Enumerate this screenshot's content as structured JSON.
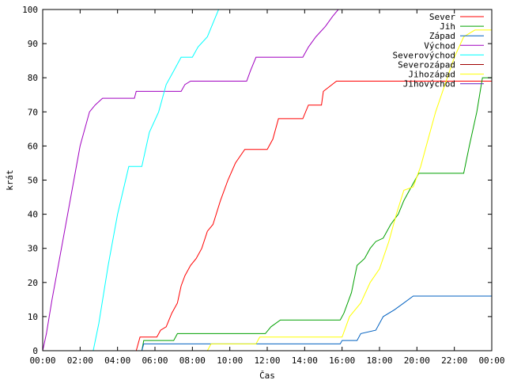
{
  "chart_data": {
    "type": "line",
    "xlabel": "Čas",
    "ylabel": "krát",
    "xlim": [
      0,
      24
    ],
    "ylim": [
      0,
      100
    ],
    "grid": false,
    "legend_position": "top-right",
    "x_ticks": [
      0,
      2,
      4,
      6,
      8,
      10,
      12,
      14,
      16,
      18,
      20,
      22,
      24
    ],
    "x_tick_labels": [
      "00:00",
      "02:00",
      "04:00",
      "06:00",
      "08:00",
      "10:00",
      "12:00",
      "14:00",
      "16:00",
      "18:00",
      "20:00",
      "22:00",
      "00:00"
    ],
    "y_ticks": [
      0,
      10,
      20,
      30,
      40,
      50,
      60,
      70,
      80,
      90,
      100
    ],
    "y_tick_labels": [
      "0",
      "10",
      "20",
      "30",
      "40",
      "50",
      "60",
      "70",
      "80",
      "90",
      "100"
    ],
    "series": [
      {
        "name": "Sever",
        "color": "#ff0000",
        "points": [
          [
            0,
            0
          ],
          [
            5,
            0
          ],
          [
            5.2,
            4
          ],
          [
            6.1,
            4
          ],
          [
            6.3,
            6
          ],
          [
            6.6,
            7
          ],
          [
            6.9,
            11
          ],
          [
            7.2,
            14
          ],
          [
            7.4,
            19
          ],
          [
            7.6,
            22
          ],
          [
            7.9,
            25
          ],
          [
            8.2,
            27
          ],
          [
            8.5,
            30
          ],
          [
            8.8,
            35
          ],
          [
            9.1,
            37
          ],
          [
            9.5,
            44
          ],
          [
            9.9,
            50
          ],
          [
            10.3,
            55
          ],
          [
            10.8,
            59
          ],
          [
            12.0,
            59
          ],
          [
            12.3,
            62
          ],
          [
            12.6,
            68
          ],
          [
            13.9,
            68
          ],
          [
            14.2,
            72
          ],
          [
            14.9,
            72
          ],
          [
            15.0,
            76
          ],
          [
            15.7,
            79
          ],
          [
            20.0,
            79
          ],
          [
            24,
            79
          ]
        ]
      },
      {
        "name": "Jih",
        "color": "#00a000",
        "points": [
          [
            0,
            0
          ],
          [
            5.3,
            0
          ],
          [
            5.4,
            3
          ],
          [
            7.0,
            3
          ],
          [
            7.2,
            5
          ],
          [
            11.9,
            5
          ],
          [
            12.2,
            7
          ],
          [
            12.7,
            9
          ],
          [
            15.9,
            9
          ],
          [
            16.1,
            11
          ],
          [
            16.5,
            17
          ],
          [
            16.8,
            25
          ],
          [
            17.2,
            27
          ],
          [
            17.5,
            30
          ],
          [
            17.8,
            32
          ],
          [
            18.2,
            33
          ],
          [
            18.6,
            37
          ],
          [
            19.0,
            40
          ],
          [
            19.3,
            44
          ],
          [
            19.7,
            48
          ],
          [
            20.1,
            52
          ],
          [
            22.5,
            52
          ],
          [
            22.8,
            60
          ],
          [
            23.2,
            70
          ],
          [
            23.5,
            80
          ],
          [
            24,
            80
          ]
        ]
      },
      {
        "name": "Západ",
        "color": "#0060c0",
        "points": [
          [
            0,
            0
          ],
          [
            5.3,
            0
          ],
          [
            5.4,
            2
          ],
          [
            15.9,
            2
          ],
          [
            16.0,
            3
          ],
          [
            16.8,
            3
          ],
          [
            17.0,
            5
          ],
          [
            17.8,
            6
          ],
          [
            18.2,
            10
          ],
          [
            18.8,
            12
          ],
          [
            19.3,
            14
          ],
          [
            19.8,
            16
          ],
          [
            24,
            16
          ]
        ]
      },
      {
        "name": "Východ",
        "color": "#a000c0",
        "points": [
          [
            0,
            0
          ],
          [
            0.2,
            5
          ],
          [
            0.5,
            15
          ],
          [
            1.0,
            30
          ],
          [
            1.5,
            45
          ],
          [
            2.0,
            60
          ],
          [
            2.5,
            70
          ],
          [
            2.8,
            72
          ],
          [
            3.2,
            74
          ],
          [
            4.9,
            74
          ],
          [
            5.0,
            76
          ],
          [
            7.4,
            76
          ],
          [
            7.6,
            78
          ],
          [
            7.9,
            79
          ],
          [
            10.9,
            79
          ],
          [
            11.1,
            82
          ],
          [
            11.4,
            86
          ],
          [
            13.9,
            86
          ],
          [
            14.2,
            89
          ],
          [
            14.6,
            92
          ],
          [
            15.1,
            95
          ],
          [
            15.5,
            98
          ],
          [
            15.8,
            100
          ]
        ]
      },
      {
        "name": "Severovýchod",
        "color": "#00ffff",
        "points": [
          [
            0,
            0
          ],
          [
            2.7,
            0
          ],
          [
            3.0,
            8
          ],
          [
            3.5,
            25
          ],
          [
            4.0,
            40
          ],
          [
            4.6,
            54
          ],
          [
            5.3,
            54
          ],
          [
            5.7,
            64
          ],
          [
            6.2,
            70
          ],
          [
            6.6,
            78
          ],
          [
            7.0,
            82
          ],
          [
            7.4,
            86
          ],
          [
            8.0,
            86
          ],
          [
            8.3,
            89
          ],
          [
            8.8,
            92
          ],
          [
            9.1,
            96
          ],
          [
            9.4,
            100
          ]
        ]
      },
      {
        "name": "Severozápad",
        "color": "#a00000",
        "points": [
          [
            0,
            0
          ],
          [
            24,
            0
          ]
        ]
      },
      {
        "name": "Jihozápad",
        "color": "#ffff00",
        "points": [
          [
            0,
            0
          ],
          [
            8.8,
            0
          ],
          [
            9.0,
            2
          ],
          [
            11.4,
            2
          ],
          [
            11.6,
            4
          ],
          [
            16.0,
            4
          ],
          [
            16.4,
            10
          ],
          [
            17.0,
            14
          ],
          [
            17.5,
            20
          ],
          [
            18.0,
            24
          ],
          [
            18.5,
            32
          ],
          [
            18.9,
            40
          ],
          [
            19.3,
            47
          ],
          [
            19.8,
            48
          ],
          [
            20.2,
            54
          ],
          [
            20.6,
            62
          ],
          [
            21.0,
            70
          ],
          [
            21.5,
            78
          ],
          [
            22.0,
            86
          ],
          [
            22.5,
            92
          ],
          [
            23.1,
            94
          ],
          [
            24,
            94
          ]
        ]
      },
      {
        "name": "Jihovýchod",
        "color": "#6020c0",
        "points": [
          [
            0,
            0
          ],
          [
            24,
            0
          ]
        ]
      }
    ]
  }
}
